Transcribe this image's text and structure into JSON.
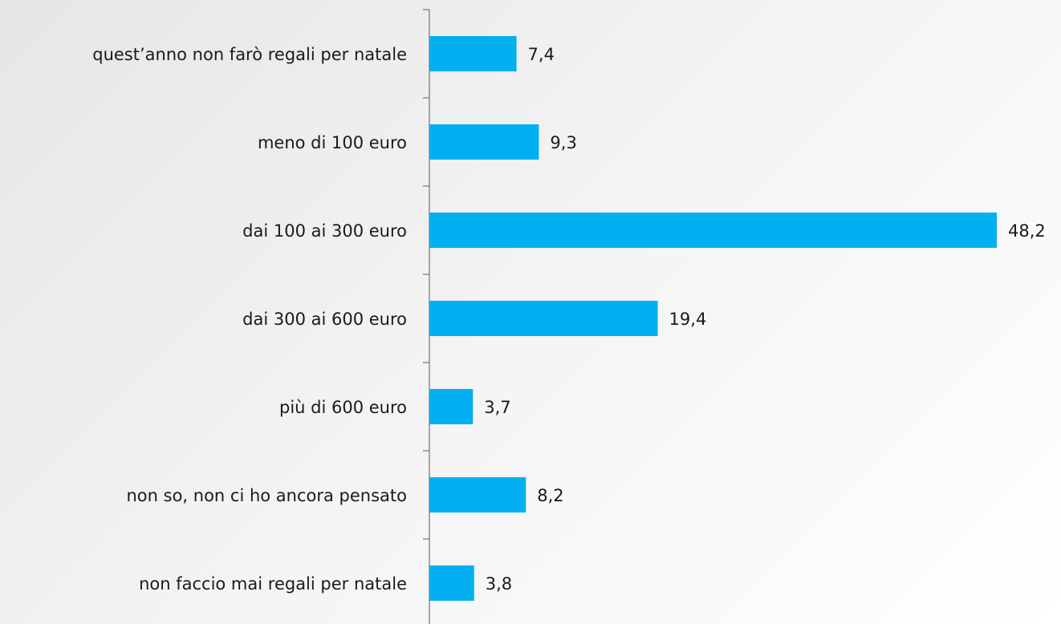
{
  "chart_data": {
    "type": "bar",
    "orientation": "horizontal",
    "categories": [
      "quest’anno non farò regali per natale",
      "meno di 100 euro",
      "dai 100 ai 300 euro",
      "dai 300 ai 600 euro",
      "più di 600 euro",
      "non so, non ci ho ancora pensato",
      "non faccio mai regali per natale"
    ],
    "values": [
      7.4,
      9.3,
      48.2,
      19.4,
      3.7,
      8.2,
      3.8
    ],
    "value_labels": [
      "7,4",
      "9,3",
      "48,2",
      "19,4",
      "3,7",
      "8,2",
      "3,8"
    ],
    "color": "#00b0f0"
  }
}
